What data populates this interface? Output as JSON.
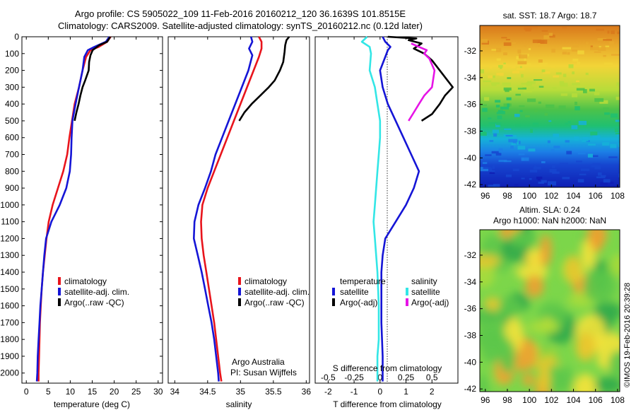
{
  "header": {
    "title_line1": "Argo profile: CS 5905022_109 11-Feb-2016 20160212_120 36.1639S 101.8515E",
    "title_line2": "Climatology: CARS2009. Satellite-adjusted climatology: synTS_20160212.nc (0.12d later)"
  },
  "colors": {
    "climatology": "#e8141c",
    "satellite": "#1515d6",
    "argo": "#000000",
    "sat_salinity": "#33e6e6",
    "argo_salinity": "#e614e6"
  },
  "annotations": {
    "argo_australia": "Argo Australia",
    "pi": "PI: Susan Wijffels",
    "sst_title": "sat. SST: 18.7 Argo: 18.7",
    "sla_title1": "Altim. SLA: 0.24",
    "sla_title2": "Argo h1000: NaN h2000: NaN",
    "imos_stamp": "©IMOS 19-Feb-2016 20:39:28"
  },
  "chart_data": [
    {
      "type": "line",
      "xlabel": "temperature (deg C)",
      "xticks": [
        "0",
        "5",
        "10",
        "15",
        "20",
        "25",
        "30"
      ],
      "xlim": [
        -1,
        31
      ],
      "yticks": [
        "0",
        "100",
        "200",
        "300",
        "400",
        "500",
        "600",
        "700",
        "800",
        "900",
        "1000",
        "1100",
        "1200",
        "1300",
        "1400",
        "1500",
        "1600",
        "1700",
        "1800",
        "1900",
        "2000"
      ],
      "ylim": [
        0,
        2060
      ],
      "legend": [
        "climatology",
        "satellite-adj. clim.",
        "Argo(..raw -QC)"
      ],
      "series": [
        {
          "name": "climatology",
          "color": "#e8141c",
          "points": [
            [
              19.2,
              0
            ],
            [
              18.4,
              30
            ],
            [
              16.5,
              60
            ],
            [
              14.6,
              80
            ],
            [
              13.6,
              120
            ],
            [
              12.8,
              200
            ],
            [
              12,
              300
            ],
            [
              11,
              400
            ],
            [
              10.4,
              500
            ],
            [
              9.8,
              600
            ],
            [
              9.3,
              700
            ],
            [
              8.4,
              800
            ],
            [
              7.2,
              900
            ],
            [
              6,
              1000
            ],
            [
              5.1,
              1100
            ],
            [
              4.6,
              1200
            ],
            [
              4.2,
              1300
            ],
            [
              3.8,
              1400
            ],
            [
              3.5,
              1500
            ],
            [
              3.3,
              1600
            ],
            [
              3.1,
              1700
            ],
            [
              3,
              1800
            ],
            [
              2.9,
              1900
            ],
            [
              2.8,
              2000
            ],
            [
              2.8,
              2050
            ]
          ]
        },
        {
          "name": "satellite-adj. clim.",
          "color": "#1515d6",
          "points": [
            [
              18.9,
              0
            ],
            [
              18.1,
              30
            ],
            [
              15.5,
              60
            ],
            [
              14,
              80
            ],
            [
              13.2,
              120
            ],
            [
              12.8,
              200
            ],
            [
              12,
              300
            ],
            [
              11.2,
              400
            ],
            [
              10.5,
              500
            ],
            [
              10.3,
              600
            ],
            [
              10.2,
              700
            ],
            [
              9.9,
              800
            ],
            [
              9.1,
              900
            ],
            [
              7.6,
              1000
            ],
            [
              5.7,
              1100
            ],
            [
              4.5,
              1200
            ],
            [
              4.1,
              1300
            ],
            [
              3.8,
              1400
            ],
            [
              3.5,
              1500
            ],
            [
              3.2,
              1600
            ],
            [
              3,
              1700
            ],
            [
              2.8,
              1800
            ],
            [
              2.6,
              1900
            ],
            [
              2.5,
              2000
            ],
            [
              2.4,
              2050
            ]
          ]
        },
        {
          "name": "Argo(..raw -QC)",
          "color": "#000000",
          "points": [
            [
              19.1,
              0
            ],
            [
              18.4,
              30
            ],
            [
              16.6,
              50
            ],
            [
              15.1,
              80
            ],
            [
              14.6,
              110
            ],
            [
              14.3,
              150
            ],
            [
              14.2,
              200
            ],
            [
              13.4,
              260
            ],
            [
              12.8,
              300
            ],
            [
              12.3,
              350
            ],
            [
              11.9,
              400
            ],
            [
              11.4,
              450
            ],
            [
              11,
              500
            ]
          ]
        }
      ]
    },
    {
      "type": "line",
      "xlabel": "salinity",
      "xticks": [
        "34",
        "34.5",
        "35",
        "35.5",
        "36"
      ],
      "xlim": [
        33.9,
        36.05
      ],
      "legend": [
        "climatology",
        "satellite-adj. clim.",
        "Argo(..raw -QC)"
      ],
      "series": [
        {
          "name": "climatology",
          "color": "#e8141c",
          "points": [
            [
              35.28,
              0
            ],
            [
              35.32,
              30
            ],
            [
              35.32,
              70
            ],
            [
              35.28,
              120
            ],
            [
              35.2,
              200
            ],
            [
              35.1,
              300
            ],
            [
              35,
              400
            ],
            [
              34.9,
              500
            ],
            [
              34.8,
              600
            ],
            [
              34.7,
              700
            ],
            [
              34.6,
              800
            ],
            [
              34.5,
              900
            ],
            [
              34.42,
              1000
            ],
            [
              34.4,
              1100
            ],
            [
              34.41,
              1200
            ],
            [
              34.44,
              1300
            ],
            [
              34.48,
              1400
            ],
            [
              34.52,
              1500
            ],
            [
              34.56,
              1600
            ],
            [
              34.6,
              1700
            ],
            [
              34.63,
              1800
            ],
            [
              34.66,
              1900
            ],
            [
              34.69,
              2000
            ],
            [
              34.71,
              2050
            ]
          ]
        },
        {
          "name": "satellite-adj. clim.",
          "color": "#1515d6",
          "points": [
            [
              35.16,
              0
            ],
            [
              35.18,
              30
            ],
            [
              35.13,
              70
            ],
            [
              35.18,
              110
            ],
            [
              35.12,
              200
            ],
            [
              35.02,
              300
            ],
            [
              34.92,
              400
            ],
            [
              34.82,
              500
            ],
            [
              34.72,
              600
            ],
            [
              34.62,
              700
            ],
            [
              34.55,
              800
            ],
            [
              34.46,
              900
            ],
            [
              34.36,
              1000
            ],
            [
              34.3,
              1100
            ],
            [
              34.29,
              1200
            ],
            [
              34.35,
              1300
            ],
            [
              34.41,
              1400
            ],
            [
              34.46,
              1500
            ],
            [
              34.51,
              1600
            ],
            [
              34.56,
              1700
            ],
            [
              34.6,
              1800
            ],
            [
              34.63,
              1900
            ],
            [
              34.66,
              2000
            ],
            [
              34.67,
              2050
            ]
          ]
        },
        {
          "name": "Argo(..raw -QC)",
          "color": "#000000",
          "points": [
            [
              35.74,
              0
            ],
            [
              35.7,
              20
            ],
            [
              35.68,
              50
            ],
            [
              35.67,
              90
            ],
            [
              35.65,
              150
            ],
            [
              35.6,
              200
            ],
            [
              35.52,
              260
            ],
            [
              35.43,
              300
            ],
            [
              35.3,
              350
            ],
            [
              35.17,
              400
            ],
            [
              35.06,
              450
            ],
            [
              34.98,
              500
            ]
          ]
        }
      ]
    },
    {
      "type": "line",
      "xlabel": "T difference from climatology",
      "xlabel_top": "S difference from climatology",
      "xticks": [
        "-2",
        "-1",
        "0",
        "1",
        "2"
      ],
      "xticks_top": [
        "-0.5",
        "-0.25",
        "0",
        "0.25",
        "0.5"
      ],
      "xlim": [
        -2.5,
        3.0
      ],
      "legend_temperature": {
        "heading": "temperature",
        "items": [
          "satellite",
          "Argo(-adj)"
        ]
      },
      "legend_salinity": {
        "heading": "salinity",
        "items": [
          "satellite",
          "Argo(-adj)"
        ]
      },
      "series": [
        {
          "name": "satellite",
          "legend_group": "temperature",
          "color": "#1515d6",
          "points": [
            [
              0.1,
              0
            ],
            [
              0.2,
              30
            ],
            [
              0.4,
              60
            ],
            [
              0.3,
              80
            ],
            [
              0.2,
              120
            ],
            [
              0,
              200
            ],
            [
              0.1,
              300
            ],
            [
              0.3,
              400
            ],
            [
              0.6,
              500
            ],
            [
              0.9,
              600
            ],
            [
              1.2,
              700
            ],
            [
              1.5,
              800
            ],
            [
              1.3,
              900
            ],
            [
              1,
              1000
            ],
            [
              0.6,
              1100
            ],
            [
              0.2,
              1200
            ],
            [
              0.1,
              1300
            ],
            [
              0.05,
              1400
            ],
            [
              0.05,
              1500
            ],
            [
              0.05,
              1700
            ],
            [
              0.1,
              1900
            ],
            [
              0.1,
              2050
            ]
          ]
        },
        {
          "name": "Argo(-adj)",
          "legend_group": "temperature",
          "color": "#000000",
          "points": [
            [
              0.3,
              0
            ],
            [
              1.4,
              10
            ],
            [
              1.1,
              20
            ],
            [
              1.6,
              40
            ],
            [
              1.3,
              70
            ],
            [
              1.7,
              100
            ],
            [
              2.0,
              140
            ],
            [
              2.3,
              200
            ],
            [
              2.6,
              260
            ],
            [
              2.8,
              300
            ],
            [
              2.5,
              350
            ],
            [
              2.3,
              400
            ],
            [
              2.0,
              460
            ],
            [
              1.6,
              500
            ]
          ]
        },
        {
          "name": "satellite",
          "legend_group": "salinity",
          "color": "#33e6e6",
          "points": [
            [
              -0.5,
              0
            ],
            [
              -0.7,
              30
            ],
            [
              -0.4,
              60
            ],
            [
              -0.35,
              100
            ],
            [
              -0.4,
              200
            ],
            [
              -0.2,
              300
            ],
            [
              -0.1,
              400
            ],
            [
              0,
              500
            ],
            [
              0,
              600
            ],
            [
              -0.05,
              700
            ],
            [
              -0.1,
              800
            ],
            [
              -0.15,
              900
            ],
            [
              -0.2,
              1000
            ],
            [
              -0.25,
              1100
            ],
            [
              -0.2,
              1200
            ],
            [
              -0.15,
              1300
            ],
            [
              -0.1,
              1400
            ],
            [
              -0.05,
              1600
            ],
            [
              -0.05,
              1800
            ],
            [
              -0.1,
              1900
            ],
            [
              -0.1,
              2050
            ]
          ]
        },
        {
          "name": "Argo(-adj)",
          "legend_group": "salinity",
          "color": "#e614e6",
          "points": [
            [
              1.2,
              40
            ],
            [
              1.5,
              60
            ],
            [
              1.8,
              80
            ],
            [
              1.7,
              100
            ],
            [
              1.9,
              130
            ],
            [
              2.1,
              200
            ],
            [
              2.0,
              300
            ],
            [
              1.7,
              350
            ],
            [
              1.5,
              400
            ],
            [
              1.3,
              450
            ],
            [
              1.1,
              500
            ]
          ]
        }
      ]
    },
    {
      "type": "heatmap",
      "title": "sat. SST: 18.7 Argo: 18.7",
      "xticks": [
        "96",
        "98",
        "100",
        "102",
        "104",
        "106",
        "108"
      ],
      "yticks": [
        "-32",
        "-34",
        "-36",
        "-38",
        "-40",
        "-42"
      ],
      "xlim": [
        95.5,
        108.2
      ],
      "ylim": [
        -42.2,
        -30.1
      ]
    },
    {
      "type": "heatmap",
      "title": "Altim. SLA: 0.24 / Argo h1000: NaN h2000: NaN",
      "xticks": [
        "96",
        "98",
        "100",
        "102",
        "104",
        "106",
        "108"
      ],
      "yticks": [
        "-32",
        "-34",
        "-36",
        "-38",
        "-40",
        "-42"
      ],
      "xlim": [
        95.5,
        108.2
      ],
      "ylim": [
        -42.2,
        -30.1
      ]
    }
  ]
}
